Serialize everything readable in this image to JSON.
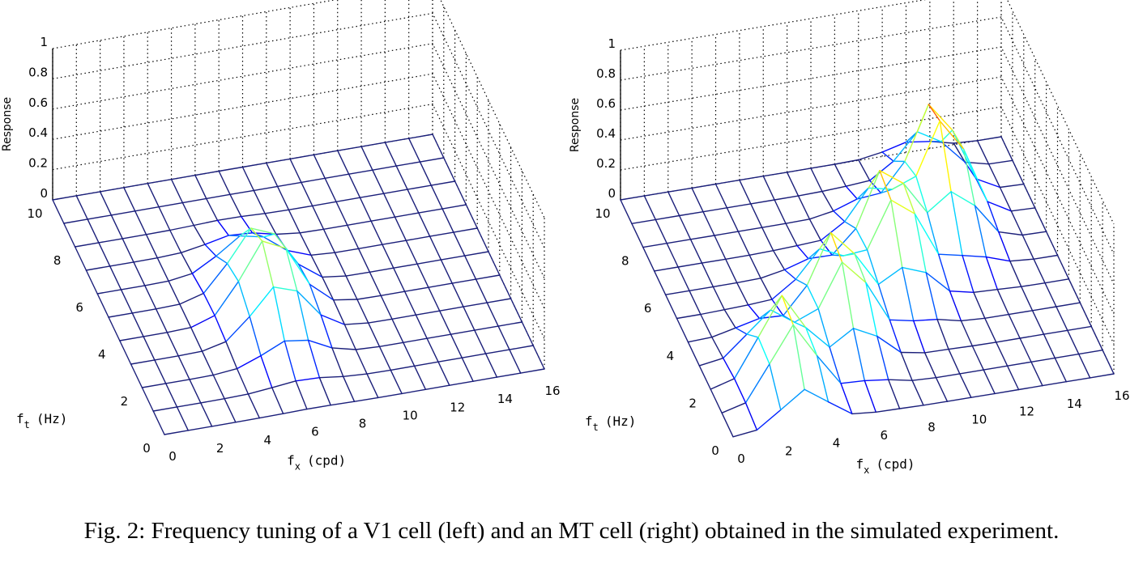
{
  "caption": "Fig. 2: Frequency tuning of a V1 cell (left) and an MT cell (right) obtained in the simulated experiment.",
  "chart_data": [
    {
      "type": "surface",
      "name": "V1 cell",
      "title": "",
      "x_label_main": "f",
      "x_label_sub": "x",
      "x_label_unit": "(cpd)",
      "y_label_main": "f",
      "y_label_sub": "t",
      "y_label_unit": "(Hz)",
      "z_label": "Response",
      "x_ticks": [
        "0",
        "2",
        "4",
        "6",
        "8",
        "10",
        "12",
        "14",
        "16"
      ],
      "y_ticks": [
        "0",
        "2",
        "4",
        "6",
        "8",
        "10"
      ],
      "z_ticks": [
        "0",
        "0.2",
        "0.4",
        "0.6",
        "0.8",
        "1"
      ],
      "xlim": [
        0,
        16
      ],
      "ylim": [
        0,
        10
      ],
      "zlim": [
        0,
        1
      ],
      "grid": true,
      "peaks": [
        {
          "fx": 6.3,
          "ft": 4.2,
          "amp": 0.52,
          "sx": 1.1,
          "st": 1.4
        }
      ]
    },
    {
      "type": "surface",
      "name": "MT cell",
      "title": "",
      "x_label_main": "f",
      "x_label_sub": "x",
      "x_label_unit": "(cpd)",
      "y_label_main": "f",
      "y_label_sub": "t",
      "y_label_unit": "(Hz)",
      "z_label": "Response",
      "x_ticks": [
        "0",
        "2",
        "4",
        "6",
        "8",
        "10",
        "12",
        "14",
        "16"
      ],
      "y_ticks": [
        "0",
        "2",
        "4",
        "6",
        "8",
        "10"
      ],
      "z_ticks": [
        "0",
        "0.2",
        "0.4",
        "0.6",
        "0.8",
        "1"
      ],
      "xlim": [
        0,
        16
      ],
      "ylim": [
        0,
        10
      ],
      "zlim": [
        0,
        1
      ],
      "grid": true,
      "peaks": [
        {
          "fx": 3.0,
          "ft": 1.6,
          "amp": 0.58,
          "sx": 0.9,
          "st": 1.2
        },
        {
          "fx": 6.2,
          "ft": 3.6,
          "amp": 0.62,
          "sx": 0.9,
          "st": 1.2
        },
        {
          "fx": 9.3,
          "ft": 5.6,
          "amp": 0.66,
          "sx": 0.9,
          "st": 1.2
        },
        {
          "fx": 12.2,
          "ft": 7.4,
          "amp": 0.74,
          "sx": 0.9,
          "st": 1.2
        }
      ]
    }
  ]
}
